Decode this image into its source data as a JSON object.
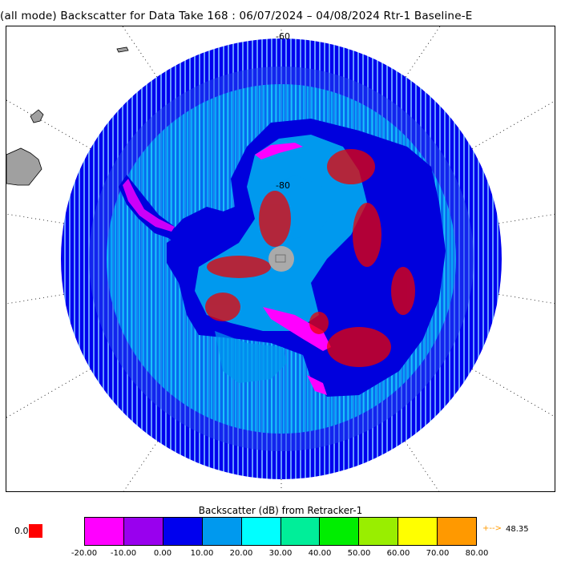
{
  "title": "(all mode) Backscatter for Data Take 168 : 06/07/2024 – 04/08/2024 Rtr-1 Baseline-E",
  "map": {
    "projection": "south polar stereographic",
    "lat_labels": [
      "-60",
      "-80"
    ],
    "land_color": "#a0a0a0",
    "pole_hole_color": "#aaaaaa"
  },
  "colorbar": {
    "title": "Backscatter (dB) from Retracker-1",
    "colors": [
      "#ff00ff",
      "#9900ee",
      "#0000ee",
      "#0099ee",
      "#00ffff",
      "#00ee99",
      "#00ee00",
      "#99ee00",
      "#ffff00",
      "#ff9900"
    ],
    "tick_labels": [
      "-20.00",
      "-10.00",
      "0.00",
      "10.00",
      "20.00",
      "30.00",
      "40.00",
      "50.00",
      "60.00",
      "70.00",
      "80.00"
    ],
    "below_range_value": "0.0",
    "below_range_color": "#ff0000",
    "above_range_arrow": "+-->",
    "above_range_value": "48.35"
  }
}
